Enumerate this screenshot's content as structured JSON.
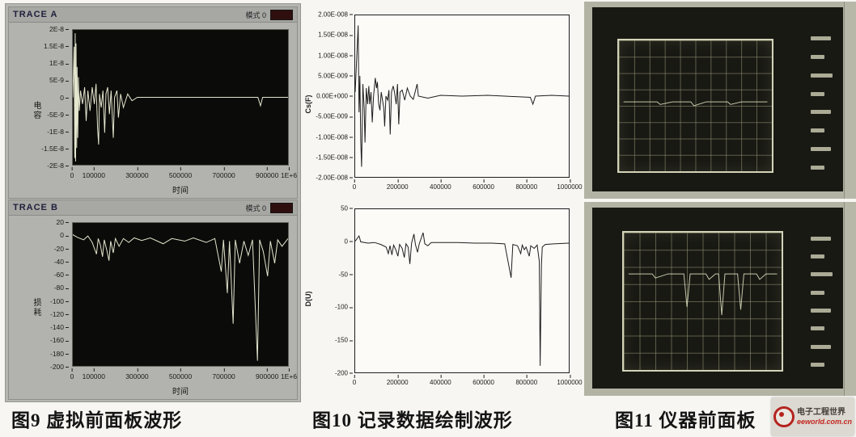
{
  "figures": {
    "fig9": {
      "caption": "图9 虚拟前面板波形",
      "windows": [
        {
          "title": "TRACE A",
          "mode": "模式 0"
        },
        {
          "title": "TRACE B",
          "mode": "模式 0"
        }
      ]
    },
    "fig10": {
      "caption": "图10 记录数据绘制波形"
    },
    "fig11": {
      "caption": "图11 仪器前面板",
      "photos": [
        {
          "trace": {
            "xlim": [
              0,
              100
            ],
            "ylim": [
              0,
              100
            ],
            "color": "rgba(214,217,184,0.9)",
            "points": [
              [
                3,
                47
              ],
              [
                25,
                47
              ],
              [
                27,
                49
              ],
              [
                35,
                47
              ],
              [
                47,
                47
              ],
              [
                49,
                50
              ],
              [
                57,
                47
              ],
              [
                71,
                47
              ],
              [
                73,
                49
              ],
              [
                80,
                47
              ],
              [
                97,
                47
              ]
            ]
          }
        },
        {
          "trace": {
            "xlim": [
              0,
              100
            ],
            "ylim": [
              0,
              100
            ],
            "color": "rgba(214,217,184,0.9)",
            "points": [
              [
                3,
                30
              ],
              [
                18,
                30
              ],
              [
                20,
                33
              ],
              [
                28,
                30
              ],
              [
                38,
                30
              ],
              [
                40,
                54
              ],
              [
                42,
                30
              ],
              [
                52,
                30
              ],
              [
                54,
                34
              ],
              [
                58,
                30
              ],
              [
                60,
                30
              ],
              [
                62,
                60
              ],
              [
                64,
                30
              ],
              [
                72,
                30
              ],
              [
                74,
                56
              ],
              [
                76,
                30
              ],
              [
                84,
                30
              ],
              [
                86,
                34
              ],
              [
                90,
                30
              ],
              [
                97,
                30
              ]
            ]
          }
        }
      ]
    }
  },
  "watermark": {
    "site_name": "电子工程世界",
    "site_url": "eeworld.com.cn"
  },
  "chart_data": [
    {
      "id": "trace-a",
      "type": "line",
      "title": "TRACE A",
      "xlabel": "时间",
      "ylabel": "电容",
      "xlim": [
        0,
        1000000
      ],
      "ylim": [
        2e-08,
        -2e-08
      ],
      "grid": false,
      "color": "#e4e6ce",
      "xticks": [
        {
          "t": "0",
          "p": 0
        },
        {
          "t": "100000",
          "p": 10
        },
        {
          "t": "300000",
          "p": 30
        },
        {
          "t": "500000",
          "p": 50
        },
        {
          "t": "700000",
          "p": 70
        },
        {
          "t": "900000",
          "p": 90
        },
        {
          "t": "1E+6",
          "p": 100
        }
      ],
      "yticks": [
        {
          "t": "2E-8",
          "p": 0
        },
        {
          "t": "1.5E-8",
          "p": 12.5
        },
        {
          "t": "1E-8",
          "p": 25
        },
        {
          "t": "5E-9",
          "p": 37.5
        },
        {
          "t": "0",
          "p": 50
        },
        {
          "t": "-5E-9",
          "p": 62.5
        },
        {
          "t": "-1E-8",
          "p": 75
        },
        {
          "t": "-1.5E-8",
          "p": 87.5
        },
        {
          "t": "-2E-8",
          "p": 100
        }
      ],
      "points": [
        [
          0,
          0
        ],
        [
          6000,
          1.5e-08
        ],
        [
          9000,
          -1.8e-08
        ],
        [
          11000,
          1.9e-08
        ],
        [
          13000,
          -1.9e-08
        ],
        [
          15000,
          1.6e-08
        ],
        [
          18000,
          -1.5e-08
        ],
        [
          20000,
          9e-09
        ],
        [
          23000,
          -1.2e-08
        ],
        [
          26000,
          6e-09
        ],
        [
          30000,
          -4e-09
        ],
        [
          36000,
          2e-09
        ],
        [
          45000,
          -2e-09
        ],
        [
          55000,
          3e-09
        ],
        [
          62000,
          -7e-09
        ],
        [
          70000,
          2e-09
        ],
        [
          80000,
          -4e-09
        ],
        [
          90000,
          3e-09
        ],
        [
          100000,
          -2e-09
        ],
        [
          108000,
          4e-09
        ],
        [
          115000,
          -9e-09
        ],
        [
          120000,
          -1.4e-08
        ],
        [
          124000,
          1e-09
        ],
        [
          132000,
          -3e-09
        ],
        [
          140000,
          2e-09
        ],
        [
          148000,
          -1.05e-08
        ],
        [
          154000,
          1e-09
        ],
        [
          162000,
          3e-09
        ],
        [
          170000,
          -5e-09
        ],
        [
          178000,
          2e-09
        ],
        [
          188000,
          -1.2e-08
        ],
        [
          194000,
          0
        ],
        [
          205000,
          2e-09
        ],
        [
          212000,
          -6e-09
        ],
        [
          222000,
          1e-09
        ],
        [
          235000,
          -3e-09
        ],
        [
          255000,
          1e-09
        ],
        [
          275000,
          -1e-09
        ],
        [
          300000,
          0
        ],
        [
          400000,
          0
        ],
        [
          600000,
          0
        ],
        [
          860000,
          0
        ],
        [
          872000,
          -2.5e-09
        ],
        [
          882000,
          0
        ],
        [
          1000000,
          0
        ]
      ]
    },
    {
      "id": "trace-b",
      "type": "line",
      "title": "TRACE B",
      "xlabel": "时间",
      "ylabel": "损耗",
      "xlim": [
        0,
        1000000
      ],
      "ylim": [
        20,
        -200
      ],
      "grid": false,
      "color": "#e4e6ce",
      "xticks": [
        {
          "t": "0",
          "p": 0
        },
        {
          "t": "100000",
          "p": 10
        },
        {
          "t": "300000",
          "p": 30
        },
        {
          "t": "500000",
          "p": 50
        },
        {
          "t": "700000",
          "p": 70
        },
        {
          "t": "900000",
          "p": 90
        },
        {
          "t": "1E+6",
          "p": 100
        }
      ],
      "yticks": [
        {
          "t": "20",
          "p": 0
        },
        {
          "t": "0",
          "p": 9.09
        },
        {
          "t": "-20",
          "p": 18.18
        },
        {
          "t": "-40",
          "p": 27.27
        },
        {
          "t": "-60",
          "p": 36.36
        },
        {
          "t": "-80",
          "p": 45.45
        },
        {
          "t": "-100",
          "p": 54.55
        },
        {
          "t": "-120",
          "p": 63.64
        },
        {
          "t": "-140",
          "p": 72.73
        },
        {
          "t": "-160",
          "p": 81.82
        },
        {
          "t": "-180",
          "p": 90.91
        },
        {
          "t": "-200",
          "p": 100
        }
      ],
      "points": [
        [
          0,
          2
        ],
        [
          20000,
          -2
        ],
        [
          50000,
          -6
        ],
        [
          70000,
          0
        ],
        [
          90000,
          -10
        ],
        [
          110000,
          -28
        ],
        [
          118000,
          -4
        ],
        [
          128000,
          -14
        ],
        [
          138000,
          -32
        ],
        [
          146000,
          -6
        ],
        [
          158000,
          -22
        ],
        [
          168000,
          -38
        ],
        [
          176000,
          -8
        ],
        [
          188000,
          -26
        ],
        [
          198000,
          -4
        ],
        [
          215000,
          -16
        ],
        [
          235000,
          -4
        ],
        [
          260000,
          -10
        ],
        [
          285000,
          -3
        ],
        [
          320000,
          -7
        ],
        [
          360000,
          -3
        ],
        [
          420000,
          -12
        ],
        [
          460000,
          -4
        ],
        [
          520000,
          -8
        ],
        [
          560000,
          -3
        ],
        [
          620000,
          -10
        ],
        [
          660000,
          -4
        ],
        [
          690000,
          -55
        ],
        [
          700000,
          -6
        ],
        [
          718000,
          -88
        ],
        [
          728000,
          -8
        ],
        [
          745000,
          -135
        ],
        [
          755000,
          -6
        ],
        [
          775000,
          -42
        ],
        [
          795000,
          -8
        ],
        [
          815000,
          -30
        ],
        [
          835000,
          -6
        ],
        [
          858000,
          -192
        ],
        [
          868000,
          -6
        ],
        [
          885000,
          -24
        ],
        [
          905000,
          -62
        ],
        [
          918000,
          -8
        ],
        [
          938000,
          -42
        ],
        [
          952000,
          -6
        ],
        [
          972000,
          -16
        ],
        [
          1000000,
          -4
        ]
      ]
    },
    {
      "id": "cs-recorded",
      "type": "line",
      "title": "",
      "xlabel": "",
      "ylabel": "Cs(F)",
      "xlim": [
        0,
        1000000
      ],
      "ylim": [
        2e-08,
        -2e-08
      ],
      "grid": false,
      "color": "#1e1e1e",
      "xticks": [
        {
          "t": "0",
          "p": 0
        },
        {
          "t": "200000",
          "p": 20
        },
        {
          "t": "400000",
          "p": 40
        },
        {
          "t": "600000",
          "p": 60
        },
        {
          "t": "800000",
          "p": 80
        },
        {
          "t": "1000000",
          "p": 100
        }
      ],
      "yticks": [
        {
          "t": "2.00E-008",
          "p": 0
        },
        {
          "t": "1.50E-008",
          "p": 12.5
        },
        {
          "t": "1.00E-008",
          "p": 25
        },
        {
          "t": "5.00E-009",
          "p": 37.5
        },
        {
          "t": "0.00E+000",
          "p": 50
        },
        {
          "t": "-5.00E-009",
          "p": 62.5
        },
        {
          "t": "-1.00E-008",
          "p": 75
        },
        {
          "t": "-1.50E-008",
          "p": 87.5
        },
        {
          "t": "-2.00E-008",
          "p": 100
        }
      ],
      "points": [
        [
          0,
          1e-09
        ],
        [
          14000,
          1.75e-08
        ],
        [
          18000,
          -4e-09
        ],
        [
          22000,
          5e-09
        ],
        [
          26000,
          -1.1e-08
        ],
        [
          30000,
          -1.75e-08
        ],
        [
          36000,
          3e-09
        ],
        [
          42000,
          -3e-09
        ],
        [
          46000,
          -1.15e-08
        ],
        [
          52000,
          2e-09
        ],
        [
          58000,
          -2e-09
        ],
        [
          64000,
          2.5e-09
        ],
        [
          68000,
          -2e-09
        ],
        [
          74000,
          1e-09
        ],
        [
          80000,
          -6.5e-09
        ],
        [
          86000,
          0
        ],
        [
          94000,
          4.5e-09
        ],
        [
          100000,
          2e-09
        ],
        [
          104000,
          3.5e-09
        ],
        [
          110000,
          -2e-09
        ],
        [
          116000,
          -3.5e-09
        ],
        [
          122000,
          1e-09
        ],
        [
          128000,
          -1e-09
        ],
        [
          134000,
          -3e-09
        ],
        [
          138000,
          -7.5e-09
        ],
        [
          144000,
          0
        ],
        [
          152000,
          -1e-09
        ],
        [
          158000,
          1.5e-09
        ],
        [
          164000,
          -9.5e-09
        ],
        [
          170000,
          1e-09
        ],
        [
          178000,
          2.5e-09
        ],
        [
          184000,
          1e-09
        ],
        [
          192000,
          -2e-09
        ],
        [
          198000,
          3e-09
        ],
        [
          204000,
          -7e-09
        ],
        [
          210000,
          1e-09
        ],
        [
          220000,
          1.5e-09
        ],
        [
          232000,
          -1e-09
        ],
        [
          244000,
          2e-09
        ],
        [
          258000,
          0
        ],
        [
          272000,
          -8e-10
        ],
        [
          290000,
          3e-09
        ],
        [
          296000,
          0
        ],
        [
          340000,
          -5e-10
        ],
        [
          400000,
          2e-10
        ],
        [
          500000,
          0
        ],
        [
          620000,
          2e-10
        ],
        [
          700000,
          0
        ],
        [
          820000,
          -3e-10
        ],
        [
          832000,
          -2e-09
        ],
        [
          844000,
          0
        ],
        [
          920000,
          2e-10
        ],
        [
          1000000,
          0
        ]
      ]
    },
    {
      "id": "d-recorded",
      "type": "line",
      "title": "",
      "xlabel": "",
      "ylabel": "D(U)",
      "xlim": [
        0,
        1000000
      ],
      "ylim": [
        50,
        -200
      ],
      "grid": false,
      "color": "#1e1e1e",
      "xticks": [
        {
          "t": "0",
          "p": 0
        },
        {
          "t": "200000",
          "p": 20
        },
        {
          "t": "400000",
          "p": 40
        },
        {
          "t": "600000",
          "p": 60
        },
        {
          "t": "800000",
          "p": 80
        },
        {
          "t": "1000000",
          "p": 100
        }
      ],
      "yticks": [
        {
          "t": "50",
          "p": 0
        },
        {
          "t": "0",
          "p": 20
        },
        {
          "t": "-50",
          "p": 40
        },
        {
          "t": "-100",
          "p": 60
        },
        {
          "t": "-150",
          "p": 80
        },
        {
          "t": "-200",
          "p": 100
        }
      ],
      "points": [
        [
          0,
          1
        ],
        [
          18000,
          9
        ],
        [
          26000,
          0
        ],
        [
          60000,
          -2
        ],
        [
          90000,
          -1
        ],
        [
          120000,
          -4
        ],
        [
          145000,
          -8
        ],
        [
          155000,
          -18
        ],
        [
          163000,
          -6
        ],
        [
          172000,
          -20
        ],
        [
          180000,
          -5
        ],
        [
          190000,
          -12
        ],
        [
          200000,
          -22
        ],
        [
          208000,
          -4
        ],
        [
          220000,
          -10
        ],
        [
          230000,
          -24
        ],
        [
          238000,
          -3
        ],
        [
          248000,
          -8
        ],
        [
          256000,
          -34
        ],
        [
          264000,
          -2
        ],
        [
          275000,
          12
        ],
        [
          282000,
          -4
        ],
        [
          292000,
          -16
        ],
        [
          300000,
          -3
        ],
        [
          318000,
          14
        ],
        [
          326000,
          -3
        ],
        [
          340000,
          -6
        ],
        [
          356000,
          -1
        ],
        [
          400000,
          -1
        ],
        [
          480000,
          -1
        ],
        [
          560000,
          -2
        ],
        [
          640000,
          -2
        ],
        [
          700000,
          -3
        ],
        [
          730000,
          -55
        ],
        [
          738000,
          -4
        ],
        [
          760000,
          -6
        ],
        [
          775000,
          -18
        ],
        [
          782000,
          -5
        ],
        [
          792000,
          -12
        ],
        [
          800000,
          -8
        ],
        [
          815000,
          -22
        ],
        [
          822000,
          -6
        ],
        [
          838000,
          -10
        ],
        [
          852000,
          -5
        ],
        [
          862000,
          -30
        ],
        [
          866000,
          -190
        ],
        [
          872000,
          -35
        ],
        [
          876000,
          -8
        ],
        [
          890000,
          -4
        ],
        [
          930000,
          -3
        ],
        [
          1000000,
          -2
        ]
      ]
    }
  ]
}
